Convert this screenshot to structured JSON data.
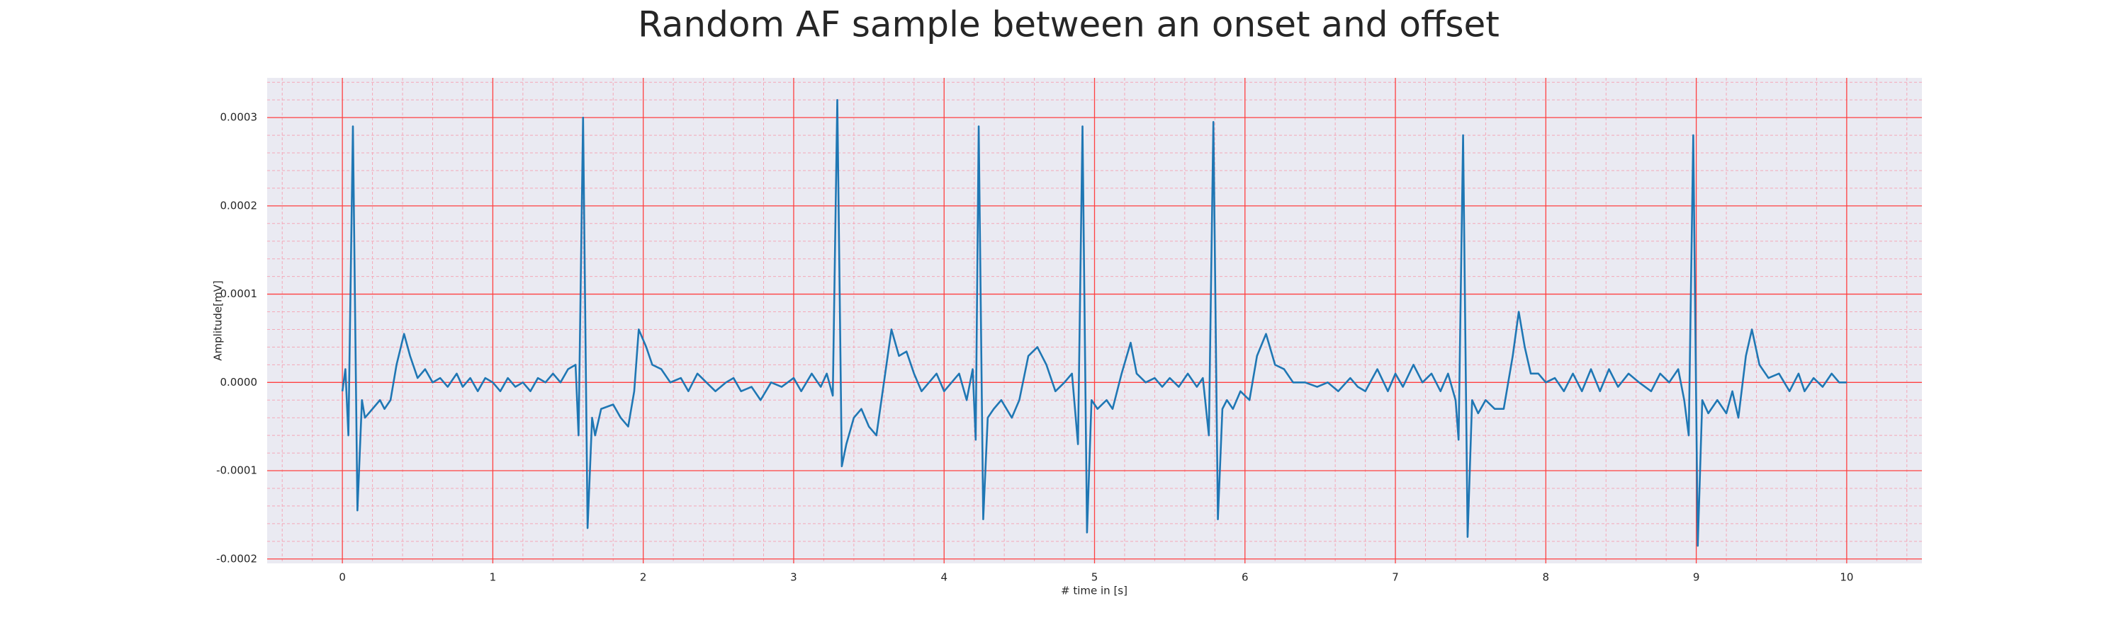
{
  "chart_data": {
    "type": "line",
    "title": "Random AF sample between an onset and offset",
    "xlabel": "# time in [s]",
    "ylabel": "Amplitude[mV]",
    "xlim": [
      -0.5,
      10.5
    ],
    "ylim": [
      -0.000205,
      0.000345
    ],
    "xticks": [
      0,
      1,
      2,
      3,
      4,
      5,
      6,
      7,
      8,
      9,
      10
    ],
    "yticks": [
      -0.0002,
      -0.0001,
      {
        "value": 0,
        "label": "0.0000"
      },
      0.0001,
      0.0002,
      0.0003
    ],
    "grid": true,
    "minor_grid": true,
    "series": [
      {
        "color": "#1f77b4",
        "x": [
          0.0,
          0.02,
          0.04,
          0.07,
          0.1,
          0.13,
          0.15,
          0.2,
          0.25,
          0.28,
          0.32,
          0.36,
          0.41,
          0.45,
          0.5,
          0.55,
          0.6,
          0.65,
          0.7,
          0.76,
          0.8,
          0.85,
          0.9,
          0.95,
          1.0,
          1.05,
          1.1,
          1.15,
          1.2,
          1.25,
          1.3,
          1.35,
          1.4,
          1.45,
          1.5,
          1.55,
          1.57,
          1.6,
          1.63,
          1.66,
          1.68,
          1.72,
          1.8,
          1.85,
          1.9,
          1.94,
          1.97,
          2.02,
          2.06,
          2.12,
          2.18,
          2.25,
          2.3,
          2.36,
          2.42,
          2.48,
          2.55,
          2.6,
          2.65,
          2.72,
          2.78,
          2.85,
          2.92,
          3.0,
          3.05,
          3.12,
          3.18,
          3.22,
          3.26,
          3.29,
          3.32,
          3.35,
          3.4,
          3.45,
          3.5,
          3.55,
          3.6,
          3.65,
          3.7,
          3.75,
          3.8,
          3.85,
          3.9,
          3.95,
          4.0,
          4.05,
          4.1,
          4.15,
          4.19,
          4.21,
          4.23,
          4.26,
          4.29,
          4.33,
          4.38,
          4.45,
          4.5,
          4.56,
          4.62,
          4.68,
          4.74,
          4.8,
          4.85,
          4.89,
          4.92,
          4.95,
          4.98,
          5.02,
          5.08,
          5.12,
          5.18,
          5.24,
          5.28,
          5.34,
          5.4,
          5.45,
          5.5,
          5.56,
          5.62,
          5.68,
          5.72,
          5.76,
          5.79,
          5.82,
          5.85,
          5.88,
          5.92,
          5.97,
          6.03,
          6.08,
          6.14,
          6.2,
          6.26,
          6.32,
          6.4,
          6.48,
          6.55,
          6.62,
          6.7,
          6.75,
          6.8,
          6.88,
          6.95,
          7.0,
          7.05,
          7.12,
          7.18,
          7.24,
          7.3,
          7.35,
          7.4,
          7.42,
          7.45,
          7.48,
          7.51,
          7.55,
          7.6,
          7.66,
          7.72,
          7.78,
          7.82,
          7.86,
          7.9,
          7.95,
          8.0,
          8.06,
          8.12,
          8.18,
          8.24,
          8.3,
          8.36,
          8.42,
          8.48,
          8.55,
          8.62,
          8.7,
          8.76,
          8.82,
          8.88,
          8.92,
          8.95,
          8.98,
          9.01,
          9.04,
          9.08,
          9.14,
          9.2,
          9.24,
          9.28,
          9.33,
          9.37,
          9.42,
          9.48,
          9.55,
          9.62,
          9.68,
          9.72,
          9.78,
          9.84,
          9.9,
          9.95,
          10.0
        ],
        "values": [
          -1e-05,
          1.5e-05,
          -6e-05,
          0.00029,
          -0.000145,
          -2e-05,
          -4e-05,
          -3e-05,
          -2e-05,
          -3e-05,
          -2e-05,
          2e-05,
          5.5e-05,
          3e-05,
          5e-06,
          1.5e-05,
          0,
          5e-06,
          -5e-06,
          1e-05,
          -5e-06,
          5e-06,
          -1e-05,
          5e-06,
          0,
          -1e-05,
          5e-06,
          -5e-06,
          0,
          -1e-05,
          5e-06,
          0,
          1e-05,
          0,
          1.5e-05,
          2e-05,
          -6e-05,
          0.0003,
          -0.000165,
          -4e-05,
          -6e-05,
          -3e-05,
          -2.5e-05,
          -4e-05,
          -5e-05,
          -1e-05,
          6e-05,
          4e-05,
          2e-05,
          1.5e-05,
          0,
          5e-06,
          -1e-05,
          1e-05,
          0,
          -1e-05,
          0,
          5e-06,
          -1e-05,
          -5e-06,
          -2e-05,
          0,
          -5e-06,
          5e-06,
          -1e-05,
          1e-05,
          -5e-06,
          1e-05,
          -1.5e-05,
          0.00032,
          -9.5e-05,
          -7e-05,
          -4e-05,
          -3e-05,
          -5e-05,
          -6e-05,
          0,
          6e-05,
          3e-05,
          3.5e-05,
          1e-05,
          -1e-05,
          0,
          1e-05,
          -1e-05,
          0,
          1e-05,
          -2e-05,
          1.5e-05,
          -6.5e-05,
          0.00029,
          -0.000155,
          -4e-05,
          -3e-05,
          -2e-05,
          -4e-05,
          -2e-05,
          3e-05,
          4e-05,
          2e-05,
          -1e-05,
          0,
          1e-05,
          -7e-05,
          0.00029,
          -0.00017,
          -2e-05,
          -3e-05,
          -2e-05,
          -3e-05,
          1e-05,
          4.5e-05,
          1e-05,
          0,
          5e-06,
          -5e-06,
          5e-06,
          -5e-06,
          1e-05,
          -5e-06,
          5e-06,
          -6e-05,
          0.000295,
          -0.000155,
          -3e-05,
          -2e-05,
          -3e-05,
          -1e-05,
          -2e-05,
          3e-05,
          5.5e-05,
          2e-05,
          1.5e-05,
          0,
          0,
          -5e-06,
          0,
          -1e-05,
          5e-06,
          -5e-06,
          -1e-05,
          1.5e-05,
          -1e-05,
          1e-05,
          -5e-06,
          2e-05,
          0,
          1e-05,
          -1e-05,
          1e-05,
          -2e-05,
          -6.5e-05,
          0.00028,
          -0.000175,
          -2e-05,
          -3.5e-05,
          -2e-05,
          -3e-05,
          -3e-05,
          3e-05,
          8e-05,
          4e-05,
          1e-05,
          1e-05,
          0,
          5e-06,
          -1e-05,
          1e-05,
          -1e-05,
          1.5e-05,
          -1e-05,
          1.5e-05,
          -5e-06,
          1e-05,
          0,
          -1e-05,
          1e-05,
          0,
          1.5e-05,
          -2e-05,
          -6e-05,
          0.00028,
          -0.000185,
          -2e-05,
          -3.5e-05,
          -2e-05,
          -3.5e-05,
          -1e-05,
          -4e-05,
          3e-05,
          6e-05,
          2e-05,
          5e-06,
          1e-05,
          -1e-05,
          1e-05,
          -1e-05,
          5e-06,
          -5e-06,
          1e-05,
          0,
          0
        ]
      }
    ]
  }
}
